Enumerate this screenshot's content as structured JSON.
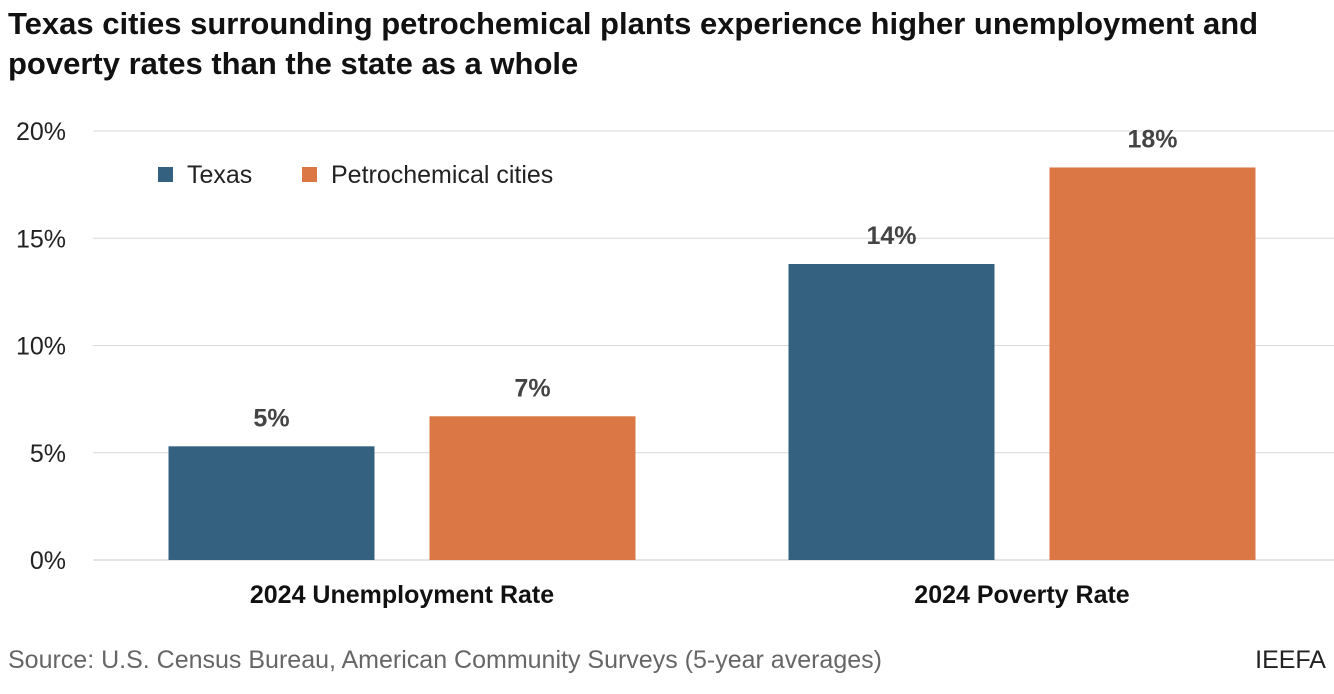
{
  "title": "Texas cities surrounding petrochemical plants experience higher unemployment and poverty rates than the state as a whole",
  "source": "Source: U.S. Census Bureau, American Community Surveys (5-year averages)",
  "brand": "IEEFA",
  "chart_data": {
    "type": "bar",
    "categories": [
      "2024 Unemployment Rate",
      "2024 Poverty Rate"
    ],
    "series": [
      {
        "name": "Texas",
        "values": [
          5.3,
          13.8
        ],
        "labels": [
          "5%",
          "14%"
        ],
        "color": "#33617f"
      },
      {
        "name": "Petrochemical cities",
        "values": [
          6.7,
          18.3
        ],
        "labels": [
          "7%",
          "18%"
        ],
        "color": "#db7645"
      }
    ],
    "ylim": [
      0,
      20
    ],
    "yticks": [
      0,
      5,
      10,
      15,
      20
    ],
    "ytick_labels": [
      "0%",
      "5%",
      "10%",
      "15%",
      "20%"
    ],
    "grid": true,
    "legend_position": "top-left",
    "title": "Texas cities surrounding petrochemical plants experience higher unemployment and poverty rates than the state as a whole",
    "xlabel": "",
    "ylabel": ""
  }
}
